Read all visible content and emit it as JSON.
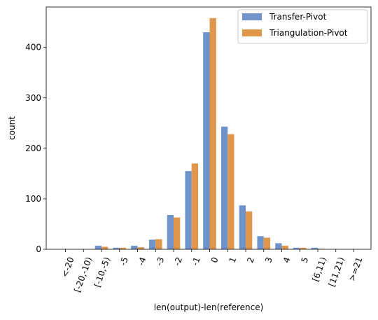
{
  "chart_data": {
    "type": "bar",
    "categories": [
      "<-20",
      "[-20,-10)",
      "[-10,-5)",
      "-5",
      "-4",
      "-3",
      "-2",
      "-1",
      "0",
      "1",
      "2",
      "3",
      "4",
      "5",
      "[6,11)",
      "[11,21)",
      ">=21"
    ],
    "series": [
      {
        "name": "Transfer-Pivot",
        "color": "#7093cb",
        "values": [
          0,
          0,
          7,
          3,
          7,
          19,
          68,
          155,
          430,
          243,
          87,
          26,
          12,
          3,
          3,
          0,
          0
        ]
      },
      {
        "name": "Triangulation-Pivot",
        "color": "#e0964b",
        "values": [
          0,
          0,
          5,
          3,
          4,
          20,
          63,
          170,
          458,
          228,
          75,
          23,
          7,
          3,
          1,
          0,
          0
        ]
      }
    ],
    "xlabel": "len(output)-len(reference)",
    "ylabel": "count",
    "ylim": [
      0,
      480
    ],
    "yticks": [
      0,
      100,
      200,
      300,
      400
    ],
    "legend_position": "top-right",
    "grid": false
  }
}
